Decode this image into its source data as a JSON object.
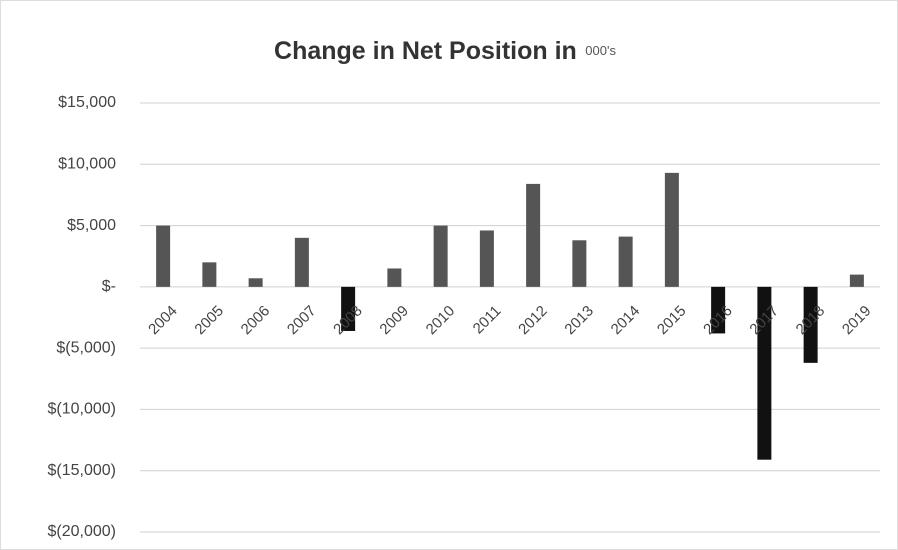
{
  "chart_data": {
    "type": "bar",
    "title": "Change in Net Position in",
    "subtitle": "000's",
    "categories": [
      "2004",
      "2005",
      "2006",
      "2007",
      "2008",
      "2009",
      "2010",
      "2011",
      "2012",
      "2013",
      "2014",
      "2015",
      "2016",
      "2017",
      "2018",
      "2019"
    ],
    "values": [
      5000,
      2000,
      700,
      4000,
      -3600,
      1500,
      5000,
      4600,
      8400,
      3800,
      4100,
      9300,
      -3800,
      -14100,
      -6200,
      1000
    ],
    "color": "#555555",
    "negative_color": "#111111",
    "ylim": [
      -20000,
      15000
    ],
    "yticks": [
      {
        "value": 15000,
        "label": "$15,000"
      },
      {
        "value": 10000,
        "label": "$10,000"
      },
      {
        "value": 5000,
        "label": "$5,000"
      },
      {
        "value": 0,
        "label": "$-"
      },
      {
        "value": -5000,
        "label": "$(5,000)"
      },
      {
        "value": -10000,
        "label": "$(10,000)"
      },
      {
        "value": -15000,
        "label": "$(15,000)"
      },
      {
        "value": -20000,
        "label": "$(20,000)"
      }
    ],
    "grid": true
  }
}
